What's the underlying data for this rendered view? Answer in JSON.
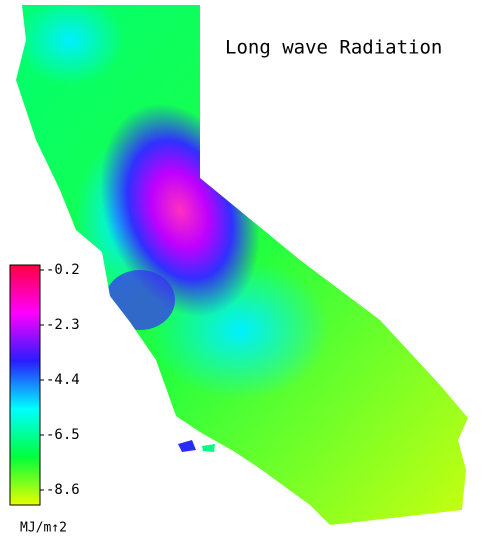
{
  "title": "Long wave Radiation",
  "colorbar": {
    "clim": [
      -0.2,
      -8.6
    ],
    "ticks": [
      -0.2,
      -2.3,
      -4.4,
      -6.5,
      -8.6
    ],
    "colors": [
      "#ff0040",
      "#ff00ff",
      "#2a1cff",
      "#00ffff",
      "#00ff3c",
      "#e8ff00"
    ],
    "unit": "MJ/m↑2"
  }
}
